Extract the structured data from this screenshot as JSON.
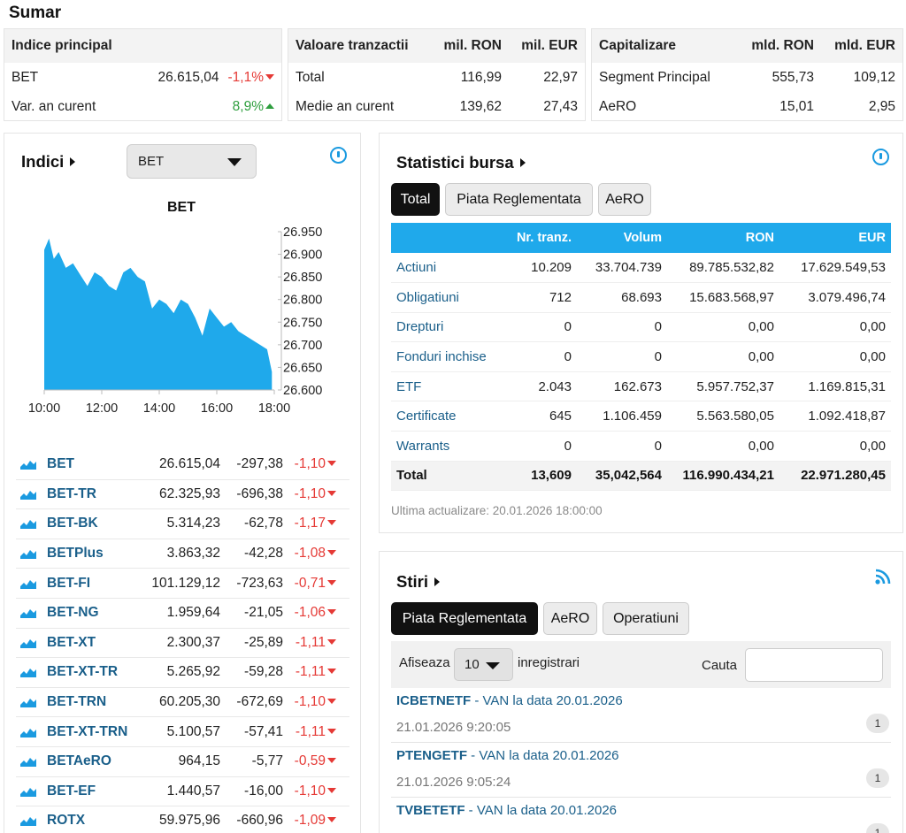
{
  "sumar": {
    "title": "Sumar",
    "indice": {
      "header": "Indice principal",
      "bet_label": "BET",
      "bet_value": "26.615,04",
      "bet_change": "-1,1%",
      "ytd_label": "Var. an curent",
      "ytd_value": "8,9%"
    },
    "valoare": {
      "header": "Valoare tranzactii",
      "col1": "mil. RON",
      "col2": "mil. EUR",
      "rows": [
        {
          "label": "Total",
          "ron": "116,99",
          "eur": "22,97"
        },
        {
          "label": "Medie an curent",
          "ron": "139,62",
          "eur": "27,43"
        }
      ]
    },
    "capitalizare": {
      "header": "Capitalizare",
      "col1": "mld. RON",
      "col2": "mld. EUR",
      "rows": [
        {
          "label": "Segment Principal",
          "ron": "555,73",
          "eur": "109,12"
        },
        {
          "label": "AeRO",
          "ron": "15,01",
          "eur": "2,95"
        }
      ]
    }
  },
  "indici": {
    "title": "Indici",
    "select_value": "BET",
    "chart_title": "BET",
    "rows": [
      {
        "name": "BET",
        "value": "26.615,04",
        "delta": "-297,38",
        "pct": "-1,10"
      },
      {
        "name": "BET-TR",
        "value": "62.325,93",
        "delta": "-696,38",
        "pct": "-1,10"
      },
      {
        "name": "BET-BK",
        "value": "5.314,23",
        "delta": "-62,78",
        "pct": "-1,17"
      },
      {
        "name": "BETPlus",
        "value": "3.863,32",
        "delta": "-42,28",
        "pct": "-1,08"
      },
      {
        "name": "BET-FI",
        "value": "101.129,12",
        "delta": "-723,63",
        "pct": "-0,71"
      },
      {
        "name": "BET-NG",
        "value": "1.959,64",
        "delta": "-21,05",
        "pct": "-1,06"
      },
      {
        "name": "BET-XT",
        "value": "2.300,37",
        "delta": "-25,89",
        "pct": "-1,11"
      },
      {
        "name": "BET-XT-TR",
        "value": "5.265,92",
        "delta": "-59,28",
        "pct": "-1,11"
      },
      {
        "name": "BET-TRN",
        "value": "60.205,30",
        "delta": "-672,69",
        "pct": "-1,10"
      },
      {
        "name": "BET-XT-TRN",
        "value": "5.100,57",
        "delta": "-57,41",
        "pct": "-1,11"
      },
      {
        "name": "BETAeRO",
        "value": "964,15",
        "delta": "-5,77",
        "pct": "-0,59"
      },
      {
        "name": "BET-EF",
        "value": "1.440,57",
        "delta": "-16,00",
        "pct": "-1,10"
      },
      {
        "name": "ROTX",
        "value": "59.975,96",
        "delta": "-660,96",
        "pct": "-1,09"
      }
    ]
  },
  "chart_data": {
    "type": "area",
    "title": "BET",
    "xlabel": "",
    "ylabel": "",
    "x_ticks": [
      "10:00",
      "12:00",
      "14:00",
      "16:00",
      "18:00"
    ],
    "y_ticks": [
      "26.950",
      "26.900",
      "26.850",
      "26.800",
      "26.750",
      "26.700",
      "26.650",
      "26.600"
    ],
    "ylim": [
      26600,
      26950
    ],
    "xlim_hours": [
      10,
      18
    ],
    "grid": false,
    "color": "#1fa9eb",
    "series": [
      {
        "x": [
          "10:00",
          "10:10",
          "10:20",
          "10:30",
          "10:45",
          "11:00",
          "11:15",
          "11:30",
          "11:45",
          "12:00",
          "12:15",
          "12:30",
          "12:45",
          "13:00",
          "13:15",
          "13:30",
          "13:45",
          "14:00",
          "14:15",
          "14:30",
          "14:45",
          "15:00",
          "15:15",
          "15:30",
          "15:45",
          "16:00",
          "16:15",
          "16:30",
          "16:45",
          "17:00",
          "17:15",
          "17:30",
          "17:45",
          "17:55"
        ],
        "values": [
          26910,
          26935,
          26890,
          26905,
          26870,
          26880,
          26855,
          26830,
          26860,
          26850,
          26830,
          26820,
          26860,
          26870,
          26850,
          26840,
          26780,
          26800,
          26790,
          26770,
          26800,
          26790,
          26760,
          26720,
          26780,
          26760,
          26740,
          26750,
          26730,
          26720,
          26710,
          26700,
          26690,
          26640
        ]
      }
    ]
  },
  "statistici": {
    "title": "Statistici bursa",
    "tabs": [
      "Total",
      "Piata Reglementata",
      "AeRO"
    ],
    "columns": [
      "",
      "Nr. tranz.",
      "Volum",
      "RON",
      "EUR"
    ],
    "rows": [
      {
        "label": "Actiuni",
        "nr": "10.209",
        "vol": "33.704.739",
        "ron": "89.785.532,82",
        "eur": "17.629.549,53"
      },
      {
        "label": "Obligatiuni",
        "nr": "712",
        "vol": "68.693",
        "ron": "15.683.568,97",
        "eur": "3.079.496,74"
      },
      {
        "label": "Drepturi",
        "nr": "0",
        "vol": "0",
        "ron": "0,00",
        "eur": "0,00"
      },
      {
        "label": "Fonduri inchise",
        "nr": "0",
        "vol": "0",
        "ron": "0,00",
        "eur": "0,00"
      },
      {
        "label": "ETF",
        "nr": "2.043",
        "vol": "162.673",
        "ron": "5.957.752,37",
        "eur": "1.169.815,31"
      },
      {
        "label": "Certificate",
        "nr": "645",
        "vol": "1.106.459",
        "ron": "5.563.580,05",
        "eur": "1.092.418,87"
      },
      {
        "label": "Warrants",
        "nr": "0",
        "vol": "0",
        "ron": "0,00",
        "eur": "0,00"
      }
    ],
    "total": {
      "label": "Total",
      "nr": "13,609",
      "vol": "35,042,564",
      "ron": "116.990.434,21",
      "eur": "22.971.280,45"
    },
    "updated": "Ultima actualizare: 20.01.2026 18:00:00"
  },
  "stiri": {
    "title": "Stiri",
    "tabs": [
      "Piata Reglementata",
      "AeRO",
      "Operatiuni"
    ],
    "show_label": "Afiseaza",
    "page_size": "10",
    "records_label": "inregistrari",
    "search_label": "Cauta",
    "search_value": "",
    "items": [
      {
        "symbol": "ICBETNETF",
        "title": " - VAN la data 20.01.2026",
        "time": "21.01.2026 9:20:05",
        "count": "1"
      },
      {
        "symbol": "PTENGETF",
        "title": " - VAN la data 20.01.2026",
        "time": "21.01.2026 9:05:24",
        "count": "1"
      },
      {
        "symbol": "TVBETETF",
        "title": " - VAN la data 20.01.2026",
        "time": "",
        "count": "1"
      }
    ]
  },
  "colors": {
    "accent": "#1fa9eb",
    "negative": "#e53935",
    "positive": "#2e9e3e",
    "link": "#1a5f8a"
  }
}
